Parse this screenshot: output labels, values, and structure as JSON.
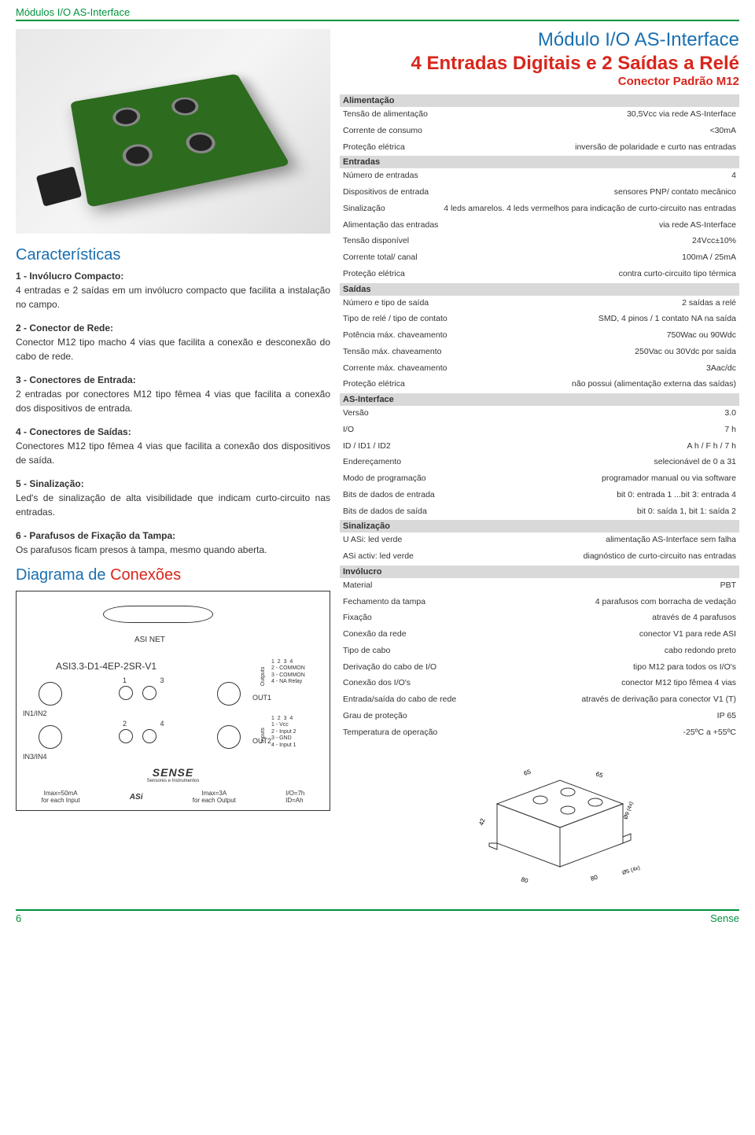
{
  "header": {
    "title": "Módulos I/O AS-Interface"
  },
  "footer": {
    "page": "6",
    "brand": "Sense"
  },
  "titles": {
    "line1": "Módulo I/O AS-Interface",
    "line2": "4 Entradas Digitais e 2 Saídas a Relé",
    "line3": "Conector Padrão M12"
  },
  "characteristics": {
    "heading": "Características",
    "items": [
      {
        "label": "1 - Invólucro Compacto:",
        "text": "4 entradas e 2 saídas em um invólucro compacto que facilita a instalação no campo."
      },
      {
        "label": "2 - Conector de Rede:",
        "text": "Conector M12 tipo macho 4 vias que facilita a conexão e desconexão do cabo de rede."
      },
      {
        "label": "3 - Conectores de Entrada:",
        "text": "2 entradas por conectores M12 tipo fêmea 4 vias que facilita a conexão dos dispositivos de entrada."
      },
      {
        "label": "4 - Conectores de Saídas:",
        "text": "Conectores M12 tipo fêmea 4 vias que facilita a conexão dos dispositivos de saída."
      },
      {
        "label": "5 - Sinalização:",
        "text": "Led's de sinalização de alta visibilidade que indicam curto-circuito nas entradas."
      },
      {
        "label": "6 - Parafusos de Fixação da Tampa:",
        "text": "Os parafusos ficam presos à tampa, mesmo quando aberta."
      }
    ]
  },
  "diagram": {
    "heading_a": "Diagrama de ",
    "heading_b": "Conexões",
    "asinet": "ASI NET",
    "model": "ASI3.3-D1-4EP-2SR-V1",
    "n13": "1 3",
    "n24": "2 4",
    "in12": "IN1/IN2",
    "in34": "IN3/IN4",
    "out1": "OUT1",
    "out2": "OUT2",
    "outputs_lbl": "Outputs",
    "outputs_pins": "1  2  3  4\n2 - COMMON\n3 - COMMON\n4 - NA Relay",
    "inputs_lbl": "Inputs",
    "inputs_pins": "1  2  3  4\n1 - Vcc\n2 - Input 2\n3 - GND\n4 - Input 1",
    "imax_in": "Imax=50mA\nfor each Input",
    "imax_out": "Imax=3A\nfor each Output",
    "io_codes": "I/O=7h\nID=Ah",
    "logo": "SENSE",
    "logo_sub": "Sensores e Instrumentos",
    "asi_small": "ASi"
  },
  "specs": {
    "sections": [
      {
        "title": "Alimentação",
        "rows": [
          {
            "k": "Tensão de alimentação",
            "v": "30,5Vcc via rede AS-Interface"
          },
          {
            "k": "Corrente de consumo",
            "v": "<30mA"
          },
          {
            "k": "Proteção elétrica",
            "v": "inversão de polaridade e curto nas entradas"
          }
        ]
      },
      {
        "title": "Entradas",
        "rows": [
          {
            "k": "Número de entradas",
            "v": "4"
          },
          {
            "k": "Dispositivos de entrada",
            "v": "sensores PNP/ contato mecânico"
          },
          {
            "k": "Sinalização",
            "v": "4 leds amarelos. 4 leds vermelhos para indicação de curto-circuito nas entradas"
          },
          {
            "k": "Alimentação das entradas",
            "v": "via rede AS-Interface"
          },
          {
            "k": "Tensão disponível",
            "v": "24Vcc±10%"
          },
          {
            "k": "Corrente total/ canal",
            "v": "100mA / 25mA"
          },
          {
            "k": "Proteção elétrica",
            "v": "contra curto-circuito tipo térmica"
          }
        ]
      },
      {
        "title": "Saídas",
        "rows": [
          {
            "k": "Número e tipo de saída",
            "v": "2 saídas a relé"
          },
          {
            "k": "Tipo de relé / tipo de contato",
            "v": "SMD, 4 pinos / 1 contato NA na saída"
          },
          {
            "k": "Potência máx. chaveamento",
            "v": "750Wac ou 90Wdc"
          },
          {
            "k": "Tensão máx. chaveamento",
            "v": "250Vac ou 30Vdc por saída"
          },
          {
            "k": "Corrente máx. chaveamento",
            "v": "3Aac/dc"
          },
          {
            "k": "Proteção elétrica",
            "v": "não possui (alimentação externa das saídas)"
          }
        ]
      },
      {
        "title": "AS-Interface",
        "rows": [
          {
            "k": "Versão",
            "v": "3.0"
          },
          {
            "k": "I/O",
            "v": "7 h"
          },
          {
            "k": "ID / ID1 / ID2",
            "v": "A h / F h / 7 h"
          },
          {
            "k": "Endereçamento",
            "v": "selecionável de 0 a 31"
          },
          {
            "k": "Modo de programação",
            "v": "programador manual ou via software"
          },
          {
            "k": "Bits de dados de entrada",
            "v": "bit 0: entrada 1 ...bit 3: entrada 4"
          },
          {
            "k": "Bits de dados de saída",
            "v": "bit 0: saída 1, bit 1: saída 2"
          }
        ]
      },
      {
        "title": "Sinalização",
        "rows": [
          {
            "k": "U ASi: led verde",
            "v": "alimentação AS-Interface sem falha"
          },
          {
            "k": "ASi activ: led verde",
            "v": "diagnóstico de curto-circuito nas entradas"
          }
        ]
      },
      {
        "title": "Invólucro",
        "rows": [
          {
            "k": "Material",
            "v": "PBT"
          },
          {
            "k": "Fechamento da tampa",
            "v": "4 parafusos com borracha de vedação"
          },
          {
            "k": "Fixação",
            "v": "através de 4 parafusos"
          },
          {
            "k": "Conexão da rede",
            "v": "conector V1 para rede ASI"
          },
          {
            "k": "Tipo de cabo",
            "v": "cabo redondo preto"
          },
          {
            "k": "Derivação do cabo de I/O",
            "v": "tipo M12 para todos os I/O's"
          },
          {
            "k": "Conexão dos I/O's",
            "v": "conector M12 tipo fêmea 4 vias"
          },
          {
            "k": "Entrada/saída do cabo de rede",
            "v": "através de derivação para conector V1 (T)"
          },
          {
            "k": "Grau de proteção",
            "v": "IP 65"
          },
          {
            "k": "Temperatura de operação",
            "v": "-25ºC a +55ºC"
          }
        ]
      }
    ]
  },
  "dims": {
    "d65a": "65",
    "d65b": "65",
    "d42": "42",
    "d80a": "80",
    "d80b": "80",
    "d9": "Ø9 (4x)",
    "d5": "Ø5 (4x)"
  },
  "colors": {
    "green": "#00923f",
    "blue": "#1a6fb0",
    "red": "#d8261c",
    "grey_hdr": "#d9d9d9"
  }
}
